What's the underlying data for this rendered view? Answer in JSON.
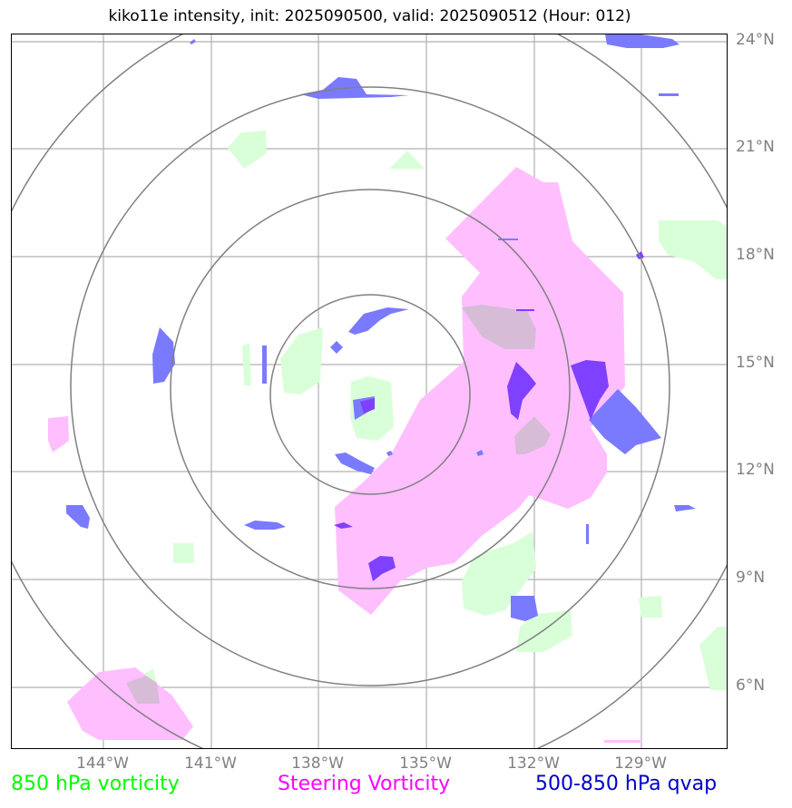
{
  "title": "kiko11e intensity, init: 2025090500, valid: 2025090512 (Hour: 012)",
  "latitude_labels": [
    "24°N",
    "21°N",
    "18°N",
    "15°N",
    "12°N",
    "9°N",
    "6°N"
  ],
  "longitude_labels": [
    "144°W",
    "141°W",
    "138°W",
    "135°W",
    "132°W",
    "129°W"
  ],
  "legend": {
    "vorticity_850": {
      "label": "850 hPa vorticity",
      "color": "#00ff00"
    },
    "steering_vorticity": {
      "label": "Steering Vorticity",
      "color": "#ff00ff"
    },
    "qvap_500_850": {
      "label": "500-850 hPa qvap",
      "color": "#0000cc"
    }
  },
  "colors": {
    "green_fill": "#d9ffd9",
    "pink_fill": "#ffbfff",
    "blue_fill": "#7a7aff",
    "violet_fill": "#8040ff",
    "grid": "#b0b0b0",
    "range_ring": "#808080",
    "label_gray": "#808080"
  }
}
